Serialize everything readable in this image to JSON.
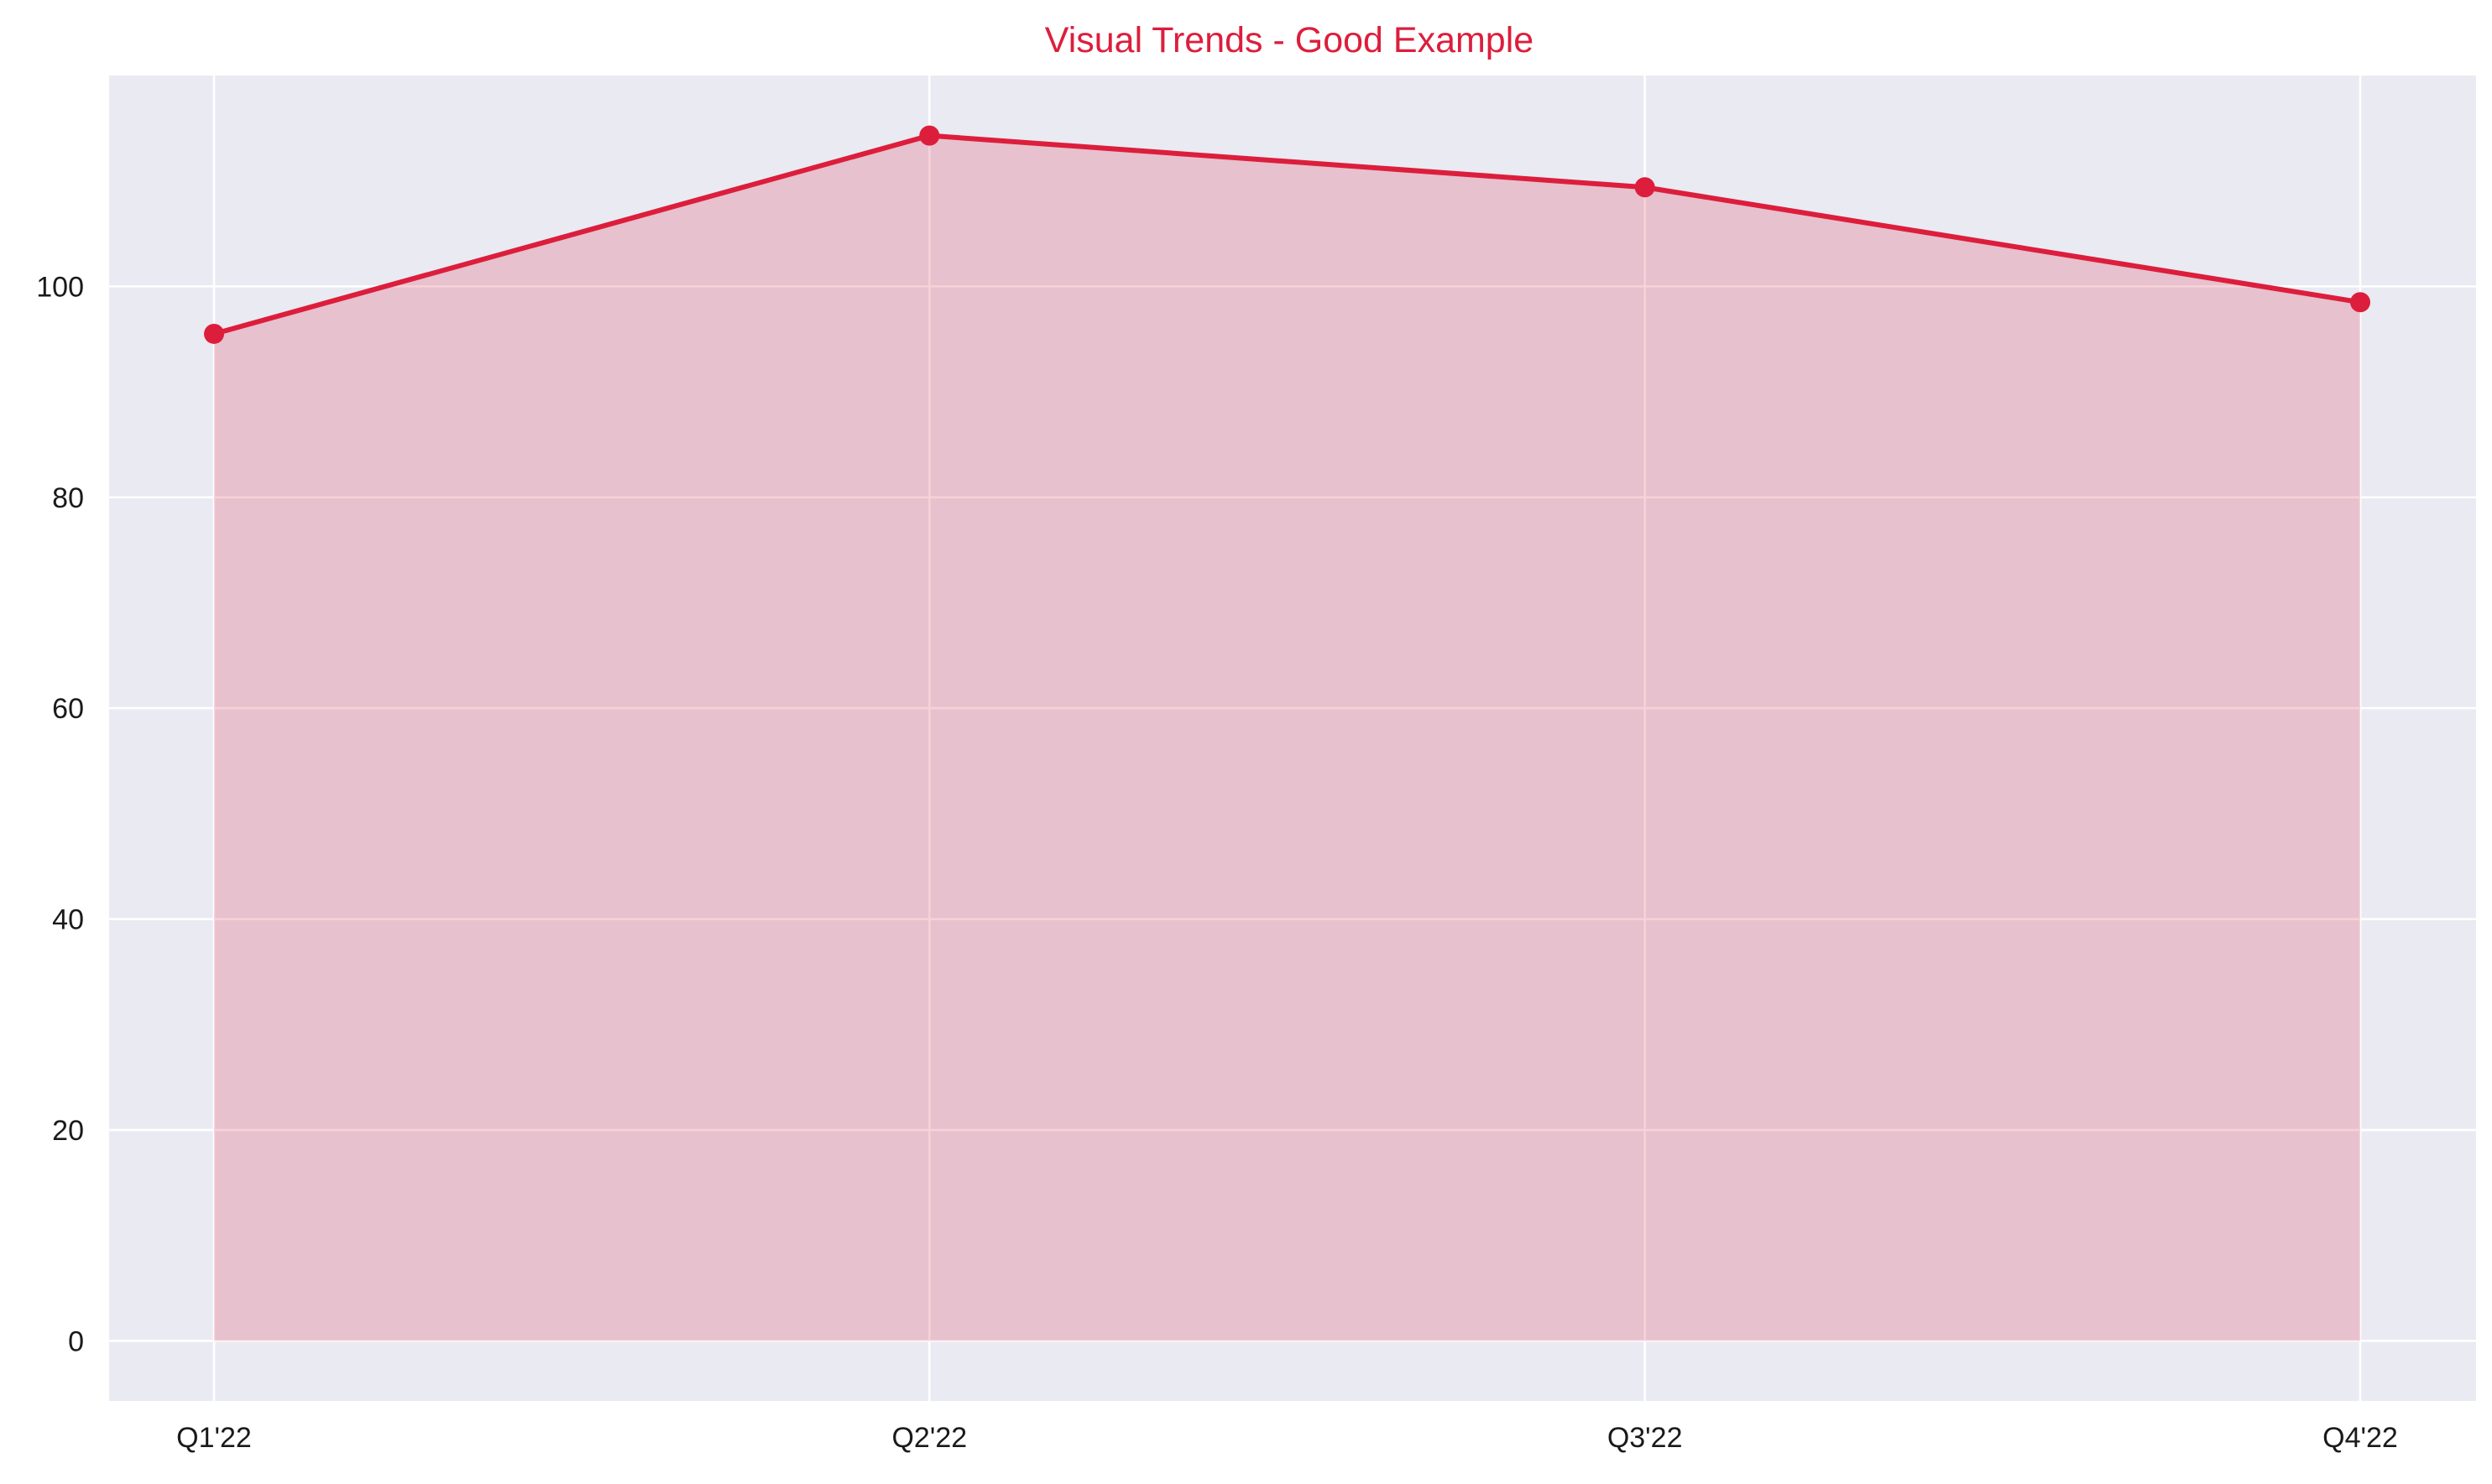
{
  "chart_data": {
    "type": "area",
    "title": "Visual Trends - Good Example",
    "xlabel": "",
    "ylabel": "",
    "categories": [
      "Q1'22",
      "Q2'22",
      "Q3'22",
      "Q4'22"
    ],
    "series": [
      {
        "values": [
          95.5,
          114.3,
          109.4,
          98.5
        ]
      }
    ],
    "ylim": [
      -5.7,
      120
    ],
    "yticks": [
      0,
      20,
      40,
      60,
      80,
      100
    ],
    "grid": true,
    "legend": "none",
    "colors": {
      "line": "#dc1e3c",
      "fill": "#dc1e3c",
      "fill_opacity": 0.2,
      "title": "#dc1e3c",
      "plot_background": "#eaeaf2",
      "grid": "#ffffff"
    }
  }
}
